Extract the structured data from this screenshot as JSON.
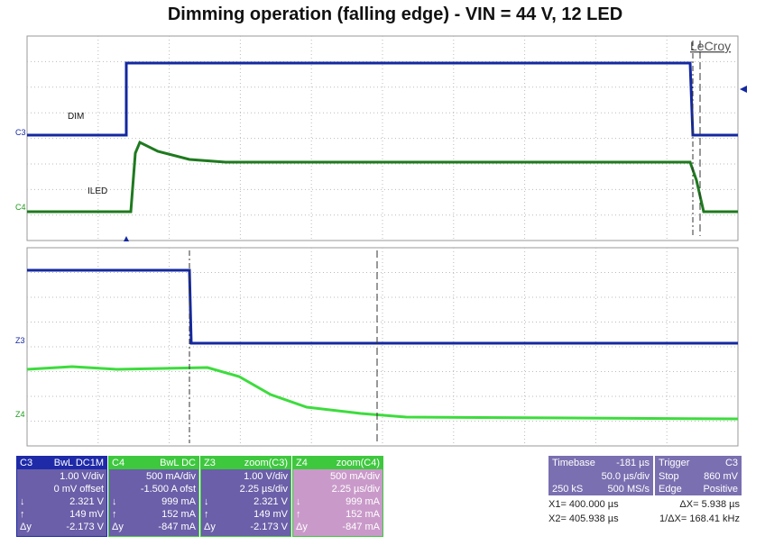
{
  "title": "Dimming operation (falling edge) - VIN = 44 V, 12 LED",
  "brand": "LeCroy",
  "labels": {
    "dim": "DIM",
    "iled": "ILED",
    "c3": "C3",
    "c4": "C4",
    "z3": "Z3",
    "z4": "Z4"
  },
  "channels": [
    {
      "header": [
        "C3",
        "BwL DC1M"
      ],
      "rows": [
        [
          "1.00 V/div"
        ],
        [
          "0 mV offset"
        ],
        [
          "↓",
          "2.321 V"
        ],
        [
          "↑",
          "149 mV"
        ],
        [
          "Δy",
          "-2.173 V"
        ]
      ]
    },
    {
      "header": [
        "C4",
        "BwL DC"
      ],
      "rows": [
        [
          "500 mA/div"
        ],
        [
          "-1.500 A ofst"
        ],
        [
          "↓",
          "999 mA"
        ],
        [
          "↑",
          "152 mA"
        ],
        [
          "Δy",
          "-847 mA"
        ]
      ]
    },
    {
      "header": [
        "Z3",
        "zoom(C3)"
      ],
      "rows": [
        [
          "1.00 V/div"
        ],
        [
          "2.25 µs/div"
        ],
        [
          "↓",
          "2.321 V"
        ],
        [
          "↑",
          "149 mV"
        ],
        [
          "Δy",
          "-2.173 V"
        ]
      ]
    },
    {
      "header": [
        "Z4",
        "zoom(C4)"
      ],
      "rows": [
        [
          "500 mA/div"
        ],
        [
          "2.25 µs/div"
        ],
        [
          "↓",
          "999 mA"
        ],
        [
          "↑",
          "152 mA"
        ],
        [
          "Δy",
          "-847 mA"
        ]
      ]
    }
  ],
  "timebase": {
    "header": [
      "Timebase",
      "-181 µs"
    ],
    "rows": [
      [
        "50.0 µs/div"
      ],
      [
        "250 kS",
        "500 MS/s"
      ]
    ]
  },
  "trigger": {
    "header": [
      "Trigger",
      "C3"
    ],
    "rows": [
      [
        "Stop",
        "860 mV"
      ],
      [
        "Edge",
        "Positive"
      ]
    ]
  },
  "cursors": [
    [
      "X1= 400.000 µs",
      "ΔX= 5.938 µs"
    ],
    [
      "X2= 405.938 µs",
      "1/ΔX= 168.41 kHz"
    ]
  ]
}
